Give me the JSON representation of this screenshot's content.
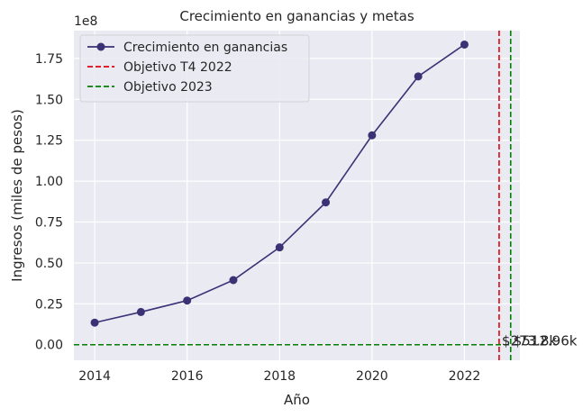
{
  "chart_data": {
    "type": "line",
    "title": "Crecimiento en ganancias y metas",
    "xlabel": "Año",
    "ylabel": "Ingresos (miles de pesos)",
    "y_offset_label": "1e8",
    "xlim": [
      2013.55,
      2023.2
    ],
    "ylim": [
      -9500000,
      192000000
    ],
    "x_ticks": [
      2014,
      2016,
      2018,
      2020,
      2022
    ],
    "y_ticks": [
      0,
      25000000,
      50000000,
      75000000,
      100000000,
      125000000,
      150000000,
      175000000
    ],
    "y_tick_labels": [
      "0.00",
      "0.25",
      "0.50",
      "0.75",
      "1.00",
      "1.25",
      "1.50",
      "1.75"
    ],
    "grid": true,
    "legend_position": "upper-left",
    "series": [
      {
        "name": "Crecimiento en ganancias",
        "color": "#3b3276",
        "marker": "circle",
        "x": [
          2014,
          2015,
          2016,
          2017,
          2018,
          2019,
          2020,
          2021,
          2022
        ],
        "values": [
          13500000,
          20000000,
          27000000,
          39500000,
          59500000,
          87000000,
          128000000,
          164000000,
          183500000
        ]
      }
    ],
    "reference_lines": [
      {
        "name": "Objetivo T4 2022",
        "orientation": "vertical",
        "x": 2022.75,
        "color": "#e8000b",
        "style": "dashed"
      },
      {
        "name": "Objetivo 2023",
        "orientation": "vertical",
        "x": 2023.0,
        "color": "#008000",
        "style": "dashed"
      },
      {
        "name": "Objetivo 2023",
        "orientation": "horizontal",
        "y": 0,
        "color": "#008000",
        "style": "dashed"
      }
    ],
    "annotations": [
      {
        "text": "$273.8k",
        "x": 2022.75,
        "y": 0
      },
      {
        "text": "$512.96k",
        "x": 2023.0,
        "y": 0
      }
    ],
    "colors": {
      "plot_background": "#eaeaf2",
      "grid": "#ffffff"
    }
  }
}
